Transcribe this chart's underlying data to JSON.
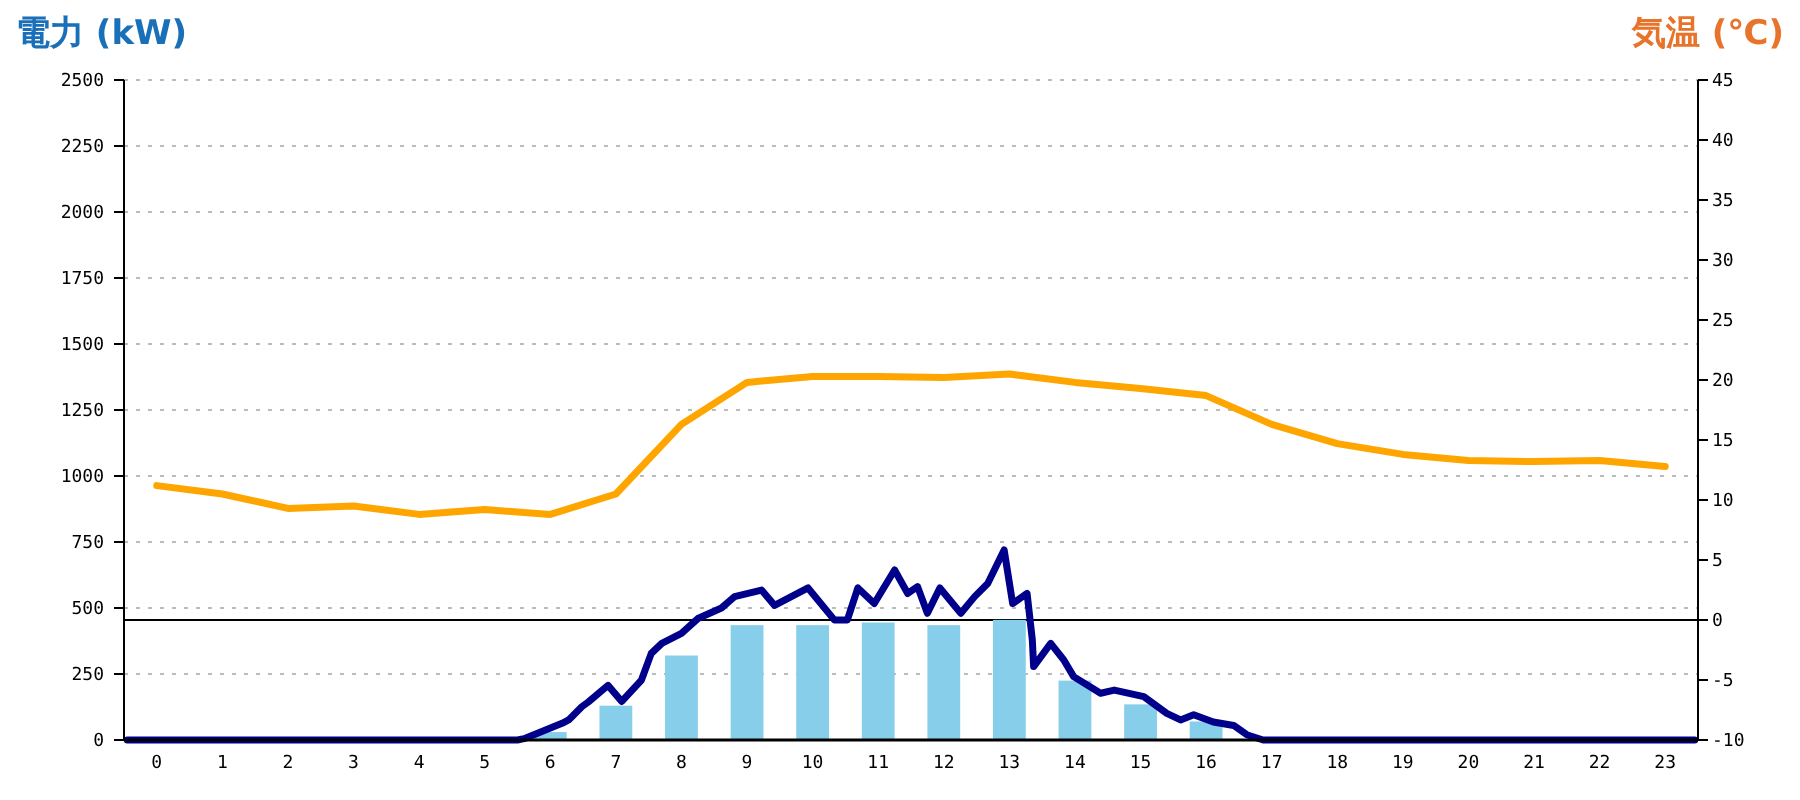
{
  "chart_data": {
    "type": "bar",
    "ylabel": "電力 (kW)",
    "y2label": "気温 (℃)",
    "x": [
      0,
      1,
      2,
      3,
      4,
      5,
      6,
      7,
      8,
      9,
      10,
      11,
      12,
      13,
      14,
      15,
      16,
      17,
      18,
      19,
      20,
      21,
      22,
      23
    ],
    "xlim": [
      -0.5,
      23.5
    ],
    "xticks": [
      0,
      1,
      2,
      3,
      4,
      5,
      6,
      7,
      8,
      9,
      10,
      11,
      12,
      13,
      14,
      15,
      16,
      17,
      18,
      19,
      20,
      21,
      22,
      23
    ],
    "ylim": [
      0,
      2500
    ],
    "yticks": [
      0,
      250,
      500,
      750,
      1000,
      1250,
      1500,
      1750,
      2000,
      2250,
      2500
    ],
    "y2lim": [
      -10,
      45
    ],
    "y2ticks": [
      -10,
      -5,
      0,
      5,
      10,
      15,
      20,
      25,
      30,
      35,
      40,
      45
    ],
    "grid": "y",
    "ref_lines": [
      {
        "axis": "y2",
        "value": 0,
        "color": "#000000"
      }
    ],
    "series": [
      {
        "color": "#87ceeb",
        "values": [
          0,
          0,
          0,
          0,
          0,
          0,
          30,
          130,
          320,
          435,
          435,
          445,
          435,
          455,
          225,
          135,
          70,
          0,
          0,
          0,
          0,
          0,
          0,
          0
        ]
      },
      {
        "type": "line",
        "color": "#00008b",
        "x": [
          -0.45,
          5.5,
          5.6,
          6.18,
          6.28,
          6.48,
          6.58,
          6.88,
          7.09,
          7.39,
          7.54,
          7.7,
          8.0,
          8.25,
          8.61,
          8.81,
          9.22,
          9.42,
          9.93,
          10.33,
          10.53,
          10.69,
          10.94,
          11.25,
          11.45,
          11.6,
          11.75,
          11.94,
          12.26,
          12.47,
          12.67,
          12.92,
          13.05,
          13.27,
          13.35,
          13.37,
          13.63,
          13.83,
          13.98,
          14.39,
          14.6,
          15.05,
          15.4,
          15.61,
          15.81,
          16.11,
          16.42,
          16.62,
          16.87,
          23.45
        ],
        "values": [
          0,
          0,
          5,
          63,
          76,
          126,
          144,
          207,
          146,
          227,
          328,
          366,
          404,
          460,
          500,
          543,
          568,
          510,
          576,
          455,
          455,
          576,
          517,
          644,
          555,
          581,
          480,
          576,
          480,
          543,
          593,
          720,
          517,
          555,
          379,
          278,
          366,
          303,
          240,
          177,
          189,
          164,
          101,
          76,
          96,
          68,
          55,
          20,
          0,
          0
        ]
      },
      {
        "type": "line",
        "axis": "y2",
        "color": "#ffa500",
        "values": [
          11.2,
          10.5,
          9.3,
          9.5,
          8.8,
          9.2,
          8.8,
          10.5,
          16.3,
          19.8,
          20.3,
          20.3,
          20.2,
          20.5,
          19.8,
          19.3,
          18.7,
          16.3,
          14.7,
          13.8,
          13.3,
          13.2,
          13.3,
          12.8
        ]
      }
    ]
  }
}
